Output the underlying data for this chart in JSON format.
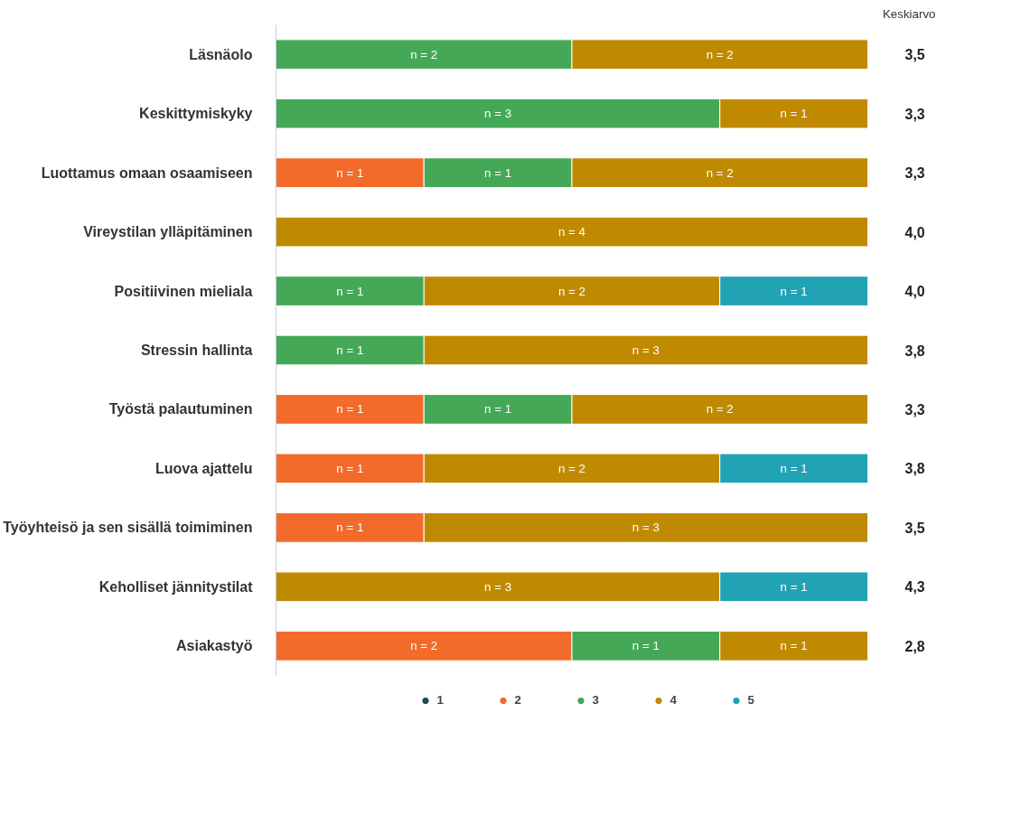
{
  "chart_data": {
    "type": "bar",
    "orientation": "horizontal",
    "stacked": true,
    "categories": [
      "Läsnäolo",
      "Keskittymiskyky",
      "Luottamus omaan osaamiseen",
      "Vireystilan ylläpitäminen",
      "Positiivinen mieliala",
      "Stressin hallinta",
      "Työstä palautuminen",
      "Luova ajattelu",
      "Työyhteisö ja sen sisällä toimiminen",
      "Keholliset jännitystilat",
      "Asiakastyö"
    ],
    "series": [
      {
        "name": "1",
        "color": "#1d4d5e",
        "values": [
          null,
          null,
          null,
          null,
          null,
          null,
          null,
          null,
          null,
          null,
          null
        ]
      },
      {
        "name": "2",
        "color": "#f26b2a",
        "values": [
          null,
          null,
          1,
          null,
          null,
          null,
          1,
          1,
          1,
          null,
          2
        ],
        "value_labels": [
          null,
          null,
          "n = 1",
          null,
          null,
          null,
          "n = 1",
          "n = 1",
          "n = 1",
          null,
          "n = 2"
        ]
      },
      {
        "name": "3",
        "color": "#45a857",
        "values": [
          2,
          3,
          1,
          null,
          1,
          1,
          1,
          null,
          null,
          null,
          1
        ],
        "value_labels": [
          "n = 2",
          "n = 3",
          "n = 1",
          null,
          "n = 1",
          "n = 1",
          "n = 1",
          null,
          null,
          null,
          "n = 1"
        ]
      },
      {
        "name": "4",
        "color": "#c08a00",
        "values": [
          2,
          1,
          2,
          4,
          2,
          3,
          2,
          2,
          3,
          3,
          1
        ],
        "value_labels": [
          "n = 2",
          "n = 1",
          "n = 2",
          "n = 4",
          "n = 2",
          "n = 3",
          "n = 2",
          "n = 2",
          "n = 3",
          "n = 3",
          "n = 1"
        ]
      },
      {
        "name": "5",
        "color": "#22a3b5",
        "values": [
          null,
          null,
          null,
          null,
          1,
          null,
          null,
          1,
          null,
          1,
          null
        ],
        "value_labels": [
          null,
          null,
          null,
          null,
          "n = 1",
          null,
          null,
          "n = 1",
          null,
          "n = 1",
          null
        ]
      }
    ],
    "xlim": [
      0,
      4
    ],
    "tick_labels": "y",
    "grid": false,
    "legend": "bottom",
    "marker": "circle",
    "annotations": [
      "Keskiarvo",
      "3,5",
      "3,3",
      "3,3",
      "4,0",
      "4,0",
      "3,8",
      "3,3",
      "3,8",
      "3,5",
      "4,3",
      "2,8"
    ]
  }
}
